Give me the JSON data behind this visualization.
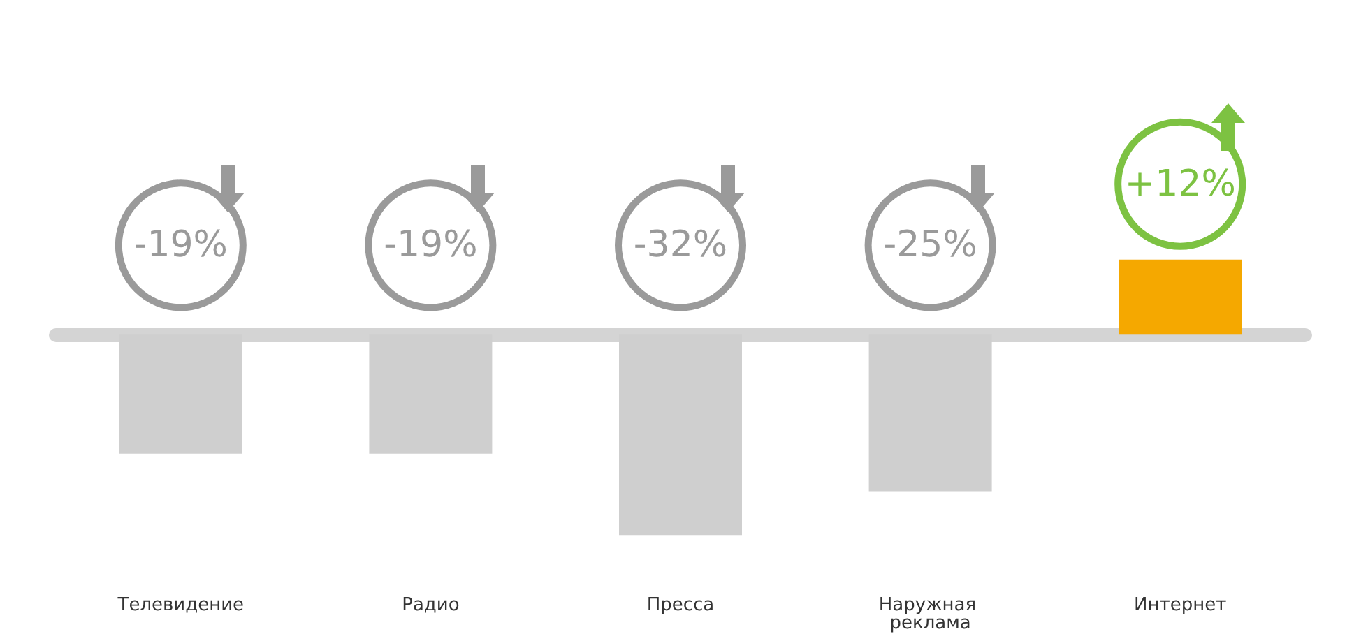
{
  "chart_data": {
    "type": "bar",
    "categories": [
      "Телевидение",
      "Радио",
      "Пресса",
      "Наружная реклама",
      "Интернет"
    ],
    "values": [
      -19,
      -19,
      -32,
      -25,
      12
    ],
    "colors": [
      "#cfcfcf",
      "#cfcfcf",
      "#cfcfcf",
      "#cfcfcf",
      "#f5a800"
    ],
    "value_labels": [
      "-19%",
      "-19%",
      "-32%",
      "-25%",
      "+12%"
    ],
    "grid": false
  }
}
